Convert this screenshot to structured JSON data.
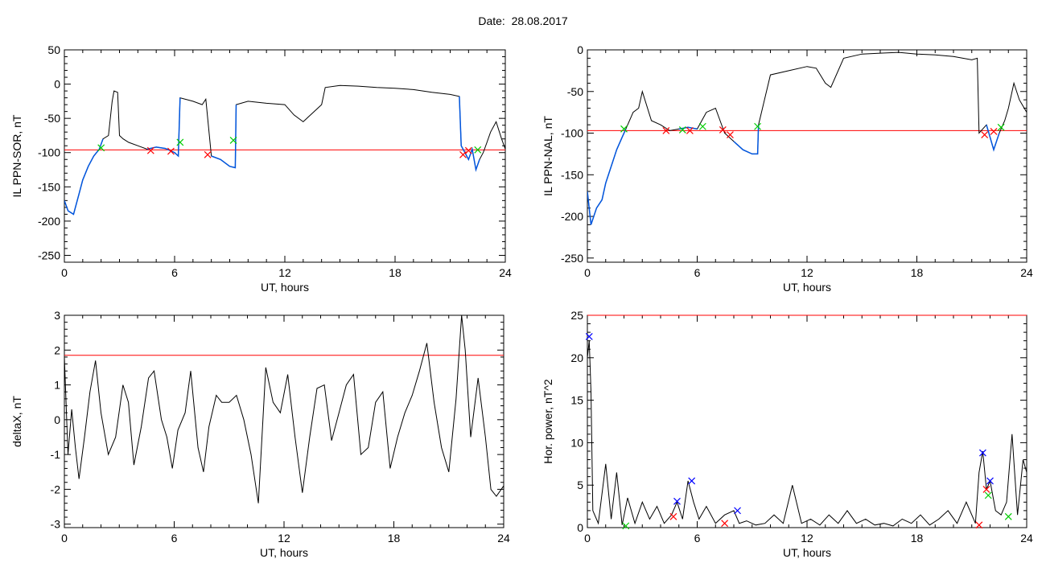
{
  "title": "Date:  28.08.2017",
  "colors": {
    "threshold": "#ff0000",
    "primary": "#000000",
    "highlight": "#0055dd",
    "mark_red": "#ff0000",
    "mark_green": "#00cc00",
    "mark_blue": "#0000ff"
  },
  "chart_data": [
    {
      "type": "line",
      "name": "IL PPN-SOR",
      "xlabel": "UT, hours",
      "ylabel": "IL PPN-SOR, nT",
      "xlim": [
        0,
        24
      ],
      "ylim": [
        -260,
        50
      ],
      "xticks": [
        0,
        6,
        12,
        18,
        24
      ],
      "yticks": [
        50,
        0,
        -50,
        -100,
        -150,
        -200,
        -250
      ],
      "threshold": -96,
      "x": [
        0,
        0.2,
        0.5,
        0.8,
        1.0,
        1.3,
        1.6,
        1.9,
        2.1,
        2.4,
        2.6,
        2.7,
        2.9,
        3.0,
        3.2,
        3.5,
        4.0,
        4.5,
        5.0,
        5.5,
        6.0,
        6.2,
        6.3,
        7.0,
        7.5,
        7.7,
        8.0,
        8.5,
        9.0,
        9.3,
        9.35,
        10.0,
        11.0,
        12.0,
        12.5,
        13.0,
        14.0,
        14.2,
        15.0,
        16.0,
        17.0,
        18.0,
        19.0,
        20.0,
        21.0,
        21.5,
        21.6,
        21.8,
        22.0,
        22.2,
        22.4,
        22.6,
        22.8,
        23.0,
        23.2,
        23.5,
        23.8,
        24.0
      ],
      "y": [
        -170,
        -185,
        -190,
        -160,
        -140,
        -120,
        -105,
        -95,
        -80,
        -75,
        -25,
        -10,
        -12,
        -75,
        -80,
        -85,
        -90,
        -95,
        -92,
        -94,
        -100,
        -105,
        -20,
        -25,
        -30,
        -22,
        -105,
        -110,
        -120,
        -122,
        -30,
        -25,
        -28,
        -30,
        -45,
        -55,
        -30,
        -5,
        -2,
        -3,
        -5,
        -6,
        -8,
        -12,
        -15,
        -18,
        -90,
        -100,
        -110,
        -95,
        -125,
        -110,
        -100,
        -85,
        -70,
        -55,
        -80,
        -95
      ],
      "highlight_range": [
        [
          0,
          2.2
        ],
        [
          4.5,
          6.3
        ],
        [
          7.8,
          9.4
        ],
        [
          21.5,
          22.6
        ]
      ],
      "markers": [
        {
          "x": 2.0,
          "y": -93,
          "color": "green"
        },
        {
          "x": 4.7,
          "y": -97,
          "color": "red"
        },
        {
          "x": 5.8,
          "y": -98,
          "color": "red"
        },
        {
          "x": 6.3,
          "y": -85,
          "color": "green"
        },
        {
          "x": 7.8,
          "y": -103,
          "color": "red"
        },
        {
          "x": 9.2,
          "y": -82,
          "color": "green"
        },
        {
          "x": 21.7,
          "y": -103,
          "color": "red"
        },
        {
          "x": 22.0,
          "y": -97,
          "color": "red"
        },
        {
          "x": 22.5,
          "y": -96,
          "color": "green"
        }
      ]
    },
    {
      "type": "line",
      "name": "IL PPN-NAL",
      "xlabel": "UT, hours",
      "ylabel": "IL PPN-NAL, nT",
      "xlim": [
        0,
        24
      ],
      "ylim": [
        -255,
        0
      ],
      "xticks": [
        0,
        6,
        12,
        18,
        24
      ],
      "yticks": [
        0,
        -50,
        -100,
        -150,
        -200,
        -250
      ],
      "threshold": -97,
      "x": [
        0,
        0.2,
        0.5,
        0.8,
        1.0,
        1.3,
        1.6,
        1.9,
        2.1,
        2.5,
        2.8,
        3.0,
        3.5,
        4.0,
        4.5,
        5.0,
        5.5,
        6.0,
        6.5,
        7.0,
        7.5,
        8.0,
        8.5,
        9.0,
        9.3,
        9.35,
        10.0,
        11.0,
        12.0,
        12.5,
        13.0,
        13.3,
        14.0,
        15.0,
        16.0,
        17.0,
        18.0,
        19.0,
        20.0,
        21.0,
        21.3,
        21.4,
        21.8,
        22.0,
        22.2,
        22.5,
        22.8,
        23.0,
        23.3,
        23.6,
        24.0
      ],
      "y": [
        -170,
        -210,
        -190,
        -180,
        -160,
        -140,
        -120,
        -105,
        -95,
        -75,
        -70,
        -50,
        -85,
        -90,
        -97,
        -95,
        -93,
        -95,
        -75,
        -70,
        -100,
        -110,
        -120,
        -125,
        -125,
        -90,
        -30,
        -25,
        -20,
        -22,
        -40,
        -45,
        -10,
        -5,
        -4,
        -3,
        -5,
        -6,
        -8,
        -12,
        -10,
        -100,
        -90,
        -105,
        -120,
        -100,
        -85,
        -70,
        -40,
        -60,
        -75
      ],
      "highlight_range": [
        [
          0,
          2.1
        ],
        [
          4.8,
          6.4
        ],
        [
          7.6,
          9.4
        ],
        [
          21.5,
          22.5
        ]
      ],
      "markers": [
        {
          "x": 2.0,
          "y": -95,
          "color": "green"
        },
        {
          "x": 4.3,
          "y": -97,
          "color": "red"
        },
        {
          "x": 5.2,
          "y": -96,
          "color": "green"
        },
        {
          "x": 5.6,
          "y": -97,
          "color": "red"
        },
        {
          "x": 6.3,
          "y": -92,
          "color": "green"
        },
        {
          "x": 7.4,
          "y": -96,
          "color": "red"
        },
        {
          "x": 7.8,
          "y": -102,
          "color": "red"
        },
        {
          "x": 9.3,
          "y": -92,
          "color": "green"
        },
        {
          "x": 21.7,
          "y": -102,
          "color": "red"
        },
        {
          "x": 22.2,
          "y": -98,
          "color": "red"
        },
        {
          "x": 22.6,
          "y": -93,
          "color": "green"
        }
      ]
    },
    {
      "type": "line",
      "name": "deltaX",
      "xlabel": "UT, hours",
      "ylabel": "deltaX, nT",
      "xlim": [
        0,
        24
      ],
      "ylim": [
        -3.1,
        3.0
      ],
      "xticks": [
        0,
        6,
        12,
        18,
        24
      ],
      "yticks": [
        3,
        2,
        1,
        0,
        -1,
        -2,
        -3
      ],
      "threshold": 1.85,
      "x": [
        0,
        0.2,
        0.4,
        0.6,
        0.8,
        1.1,
        1.4,
        1.7,
        2.0,
        2.4,
        2.8,
        3.2,
        3.5,
        3.8,
        4.2,
        4.6,
        4.9,
        5.3,
        5.6,
        5.9,
        6.2,
        6.6,
        6.9,
        7.3,
        7.6,
        7.9,
        8.3,
        8.6,
        9.0,
        9.4,
        9.8,
        10.2,
        10.6,
        11.0,
        11.4,
        11.8,
        12.2,
        12.6,
        13.0,
        13.4,
        13.8,
        14.2,
        14.6,
        15.0,
        15.4,
        15.8,
        16.2,
        16.6,
        17.0,
        17.4,
        17.8,
        18.2,
        18.6,
        19.0,
        19.4,
        19.8,
        20.2,
        20.6,
        21.0,
        21.4,
        21.7,
        21.9,
        22.2,
        22.6,
        23.0,
        23.3,
        23.6,
        24.0
      ],
      "y": [
        1.8,
        -1.0,
        0.3,
        -0.8,
        -1.7,
        -0.5,
        0.8,
        1.7,
        0.2,
        -1.0,
        -0.5,
        1.0,
        0.5,
        -1.3,
        -0.2,
        1.2,
        1.4,
        0.0,
        -0.5,
        -1.4,
        -0.3,
        0.2,
        1.4,
        -0.8,
        -1.5,
        -0.2,
        0.7,
        0.5,
        0.5,
        0.7,
        0.0,
        -1.0,
        -2.4,
        1.5,
        0.5,
        0.2,
        1.3,
        -0.5,
        -2.1,
        -0.5,
        0.9,
        1.0,
        -0.6,
        0.2,
        1.0,
        1.3,
        -1.0,
        -0.8,
        0.5,
        0.8,
        -1.4,
        -0.5,
        0.2,
        0.7,
        1.4,
        2.2,
        0.5,
        -0.8,
        -1.5,
        0.6,
        3.0,
        2.0,
        -0.5,
        1.2,
        -0.5,
        -2.0,
        -2.2,
        -1.9
      ]
    },
    {
      "type": "line",
      "name": "Hor. power",
      "xlabel": "UT, hours",
      "ylabel": "Hor. power, nT^2",
      "xlim": [
        0,
        24
      ],
      "ylim": [
        0,
        25
      ],
      "xticks": [
        0,
        6,
        12,
        18,
        24
      ],
      "yticks": [
        25,
        20,
        15,
        10,
        5,
        0
      ],
      "threshold": 25,
      "x": [
        0,
        0.1,
        0.2,
        0.3,
        0.6,
        1.0,
        1.3,
        1.6,
        1.9,
        2.2,
        2.6,
        3.0,
        3.4,
        3.8,
        4.2,
        4.6,
        4.9,
        5.2,
        5.5,
        5.8,
        6.1,
        6.5,
        7.0,
        7.5,
        8.0,
        8.3,
        8.7,
        9.2,
        9.7,
        10.2,
        10.7,
        11.2,
        11.7,
        12.2,
        12.7,
        13.2,
        13.7,
        14.2,
        14.7,
        15.2,
        15.7,
        16.2,
        16.7,
        17.2,
        17.7,
        18.2,
        18.7,
        19.2,
        19.7,
        20.2,
        20.7,
        21.2,
        21.4,
        21.6,
        21.8,
        22.0,
        22.3,
        22.6,
        22.9,
        23.2,
        23.5,
        23.8,
        24.0
      ],
      "y": [
        20,
        22,
        16,
        2,
        0.5,
        7.5,
        1.0,
        6.5,
        0.3,
        3.5,
        0.5,
        3.0,
        1.0,
        2.5,
        0.5,
        1.5,
        3.0,
        1.0,
        5.5,
        3.0,
        1.0,
        2.5,
        0.5,
        1.5,
        2.0,
        0.5,
        0.8,
        0.3,
        0.5,
        1.5,
        0.5,
        5.0,
        0.5,
        1.0,
        0.3,
        1.5,
        0.5,
        2.0,
        0.5,
        1.0,
        0.3,
        0.5,
        0.2,
        1.0,
        0.5,
        1.5,
        0.3,
        1.0,
        2.0,
        0.5,
        3.0,
        0.5,
        6.5,
        9.0,
        4.5,
        5.5,
        2.0,
        1.5,
        3.0,
        11.0,
        1.5,
        8.0,
        6.5
      ],
      "markers": [
        {
          "x": 0.1,
          "y": 22.5,
          "color": "blue"
        },
        {
          "x": 2.1,
          "y": 0.2,
          "color": "green"
        },
        {
          "x": 4.7,
          "y": 1.3,
          "color": "red"
        },
        {
          "x": 4.9,
          "y": 3.1,
          "color": "blue"
        },
        {
          "x": 5.7,
          "y": 5.5,
          "color": "blue"
        },
        {
          "x": 7.5,
          "y": 0.5,
          "color": "red"
        },
        {
          "x": 8.2,
          "y": 2.0,
          "color": "blue"
        },
        {
          "x": 21.4,
          "y": 0.3,
          "color": "red"
        },
        {
          "x": 21.6,
          "y": 8.8,
          "color": "blue"
        },
        {
          "x": 21.8,
          "y": 4.5,
          "color": "red"
        },
        {
          "x": 22.0,
          "y": 5.5,
          "color": "blue"
        },
        {
          "x": 21.9,
          "y": 3.8,
          "color": "green"
        },
        {
          "x": 23.0,
          "y": 1.3,
          "color": "green"
        }
      ]
    }
  ]
}
